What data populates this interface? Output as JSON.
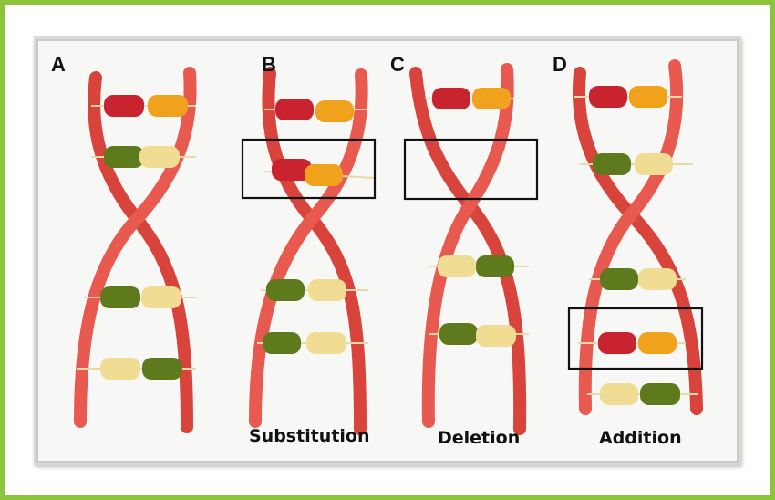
{
  "figure": {
    "panels": [
      {
        "letter": "A",
        "caption": ""
      },
      {
        "letter": "B",
        "caption": "Substitution"
      },
      {
        "letter": "C",
        "caption": "Deletion"
      },
      {
        "letter": "D",
        "caption": "Addition"
      }
    ]
  },
  "colors": {
    "frame_border": "#8cc43a",
    "backbone": "#e8524a",
    "bear_red": "#c8232e",
    "bear_orange": "#f0a21c",
    "bear_green": "#5e7a1c",
    "bear_cream": "#f1dc94"
  }
}
